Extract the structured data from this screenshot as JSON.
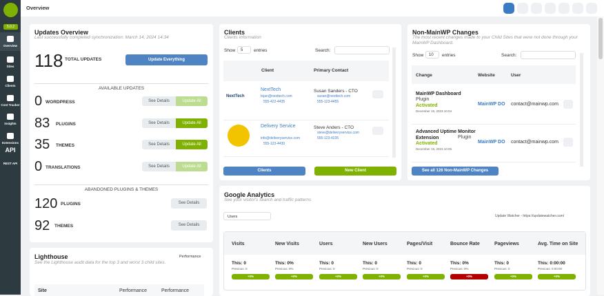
{
  "sidebar": {
    "version": "5.0.2",
    "items": [
      "Overview",
      "Sites",
      "Clients",
      "Cost Tracker",
      "Insights",
      "Extensions",
      "REST API"
    ],
    "api_icon": "API"
  },
  "topbar": {
    "title": "Overview"
  },
  "updates": {
    "title": "Updates Overview",
    "subtitle": "Last successfully completed synchronization: March 14, 2024 14:34",
    "total": "118",
    "total_label": "TOTAL UPDATES",
    "button": "Update Everything",
    "available": "AVAILABLE UPDATES",
    "rows": [
      {
        "count": "0",
        "label": "WORDPRESS",
        "details": "See Details",
        "action": "Update All"
      },
      {
        "count": "83",
        "label": "PLUGINS",
        "details": "See Details",
        "action": "Update All"
      },
      {
        "count": "35",
        "label": "THEMES",
        "details": "See Details",
        "action": "Update All"
      },
      {
        "count": "0",
        "label": "TRANSLATIONS",
        "details": "See Details",
        "action": "Update All"
      }
    ],
    "abandoned": "ABANDONED PLUGINS & THEMES",
    "abandoned_rows": [
      {
        "count": "120",
        "label": "PLUGINS",
        "details": "See Details"
      },
      {
        "count": "92",
        "label": "THEMES",
        "details": "See Details"
      }
    ]
  },
  "lighthouse": {
    "title": "Lighthouse",
    "subtitle": "See the Lighthouse audit data for the top 3 and worst 3 child sites.",
    "dropdown": "Performance",
    "columns": [
      "Site",
      "Performance",
      "Performance"
    ]
  },
  "clients": {
    "title": "Clients",
    "subtitle": "Clients information",
    "show": "Show",
    "entries_n": "5",
    "entries": "entries",
    "search": "Search:",
    "columns": [
      "Client",
      "Primary Contact"
    ],
    "rows": [
      {
        "name": "NextTech",
        "email": "tojan@nexttech.com",
        "phone": "555-422-4435",
        "contact": "Susan Sanders - CTO",
        "contact_email": "susan@nexttech.com",
        "contact_phone": "555-123-4455"
      },
      {
        "name": "Delivery Service",
        "email": "info@deliveryservice.com",
        "phone": "555-123-4430",
        "contact": "Steve Anders - CTO",
        "contact_email": "steve@deliveryservice.com",
        "contact_phone": "555-123-4235"
      }
    ],
    "buttons": [
      "Clients",
      "New Client"
    ]
  },
  "changes": {
    "title": "Non-MainWP Changes",
    "subtitle": "The most recent changes made to your Child Sites that were not done through your MainWP Dashboard.",
    "show": "Show",
    "entries_n": "10",
    "entries": "entries",
    "search": "Search:",
    "columns": [
      "Change",
      "Website",
      "User"
    ],
    "rows": [
      {
        "name": "MainWP Dashboard",
        "type": "Plugin",
        "status": "Activated",
        "date": "December 19, 2023 10:04",
        "website": "MainWP DO",
        "user": "contact@mainwp.com"
      },
      {
        "name": "Advanced Uptime Monitor Extension",
        "type": "Plugin",
        "status": "Activated",
        "date": "December 19, 2023 10:05",
        "website": "MainWP DO",
        "user": "contact@mainwp.com"
      }
    ],
    "button": "See all 126 Non-MainWP Changes"
  },
  "analytics": {
    "title": "Google Analytics",
    "subtitle": "See your visitor's search and traffic patterns",
    "metric": "Users",
    "property": "Update Watcher - https://updatewatcher.com/",
    "columns": [
      {
        "name": "Visits",
        "this": "This: 0",
        "previous": "Previous: 0",
        "change": "+0%"
      },
      {
        "name": "New Visits",
        "this": "This: 0%",
        "previous": "Previous: 0%",
        "change": "+0%"
      },
      {
        "name": "Users",
        "this": "This: 0",
        "previous": "Previous: 0",
        "change": "+0%"
      },
      {
        "name": "New Users",
        "this": "This: 0",
        "previous": "Previous: 0",
        "change": "+0%"
      },
      {
        "name": "Pages/Visit",
        "this": "This: 0",
        "previous": "Previous: 0",
        "change": "+0%"
      },
      {
        "name": "Bounce Rate",
        "this": "This: 0%",
        "previous": "Previous: 0%",
        "change": "+0%"
      },
      {
        "name": "Pageviews",
        "this": "This: 0",
        "previous": "Previous: 0",
        "change": "+0%"
      },
      {
        "name": "Avg. Time on Site",
        "this": "This: 0:00:00",
        "previous": "Previous: 0:00:00",
        "change": "+0%"
      }
    ]
  }
}
